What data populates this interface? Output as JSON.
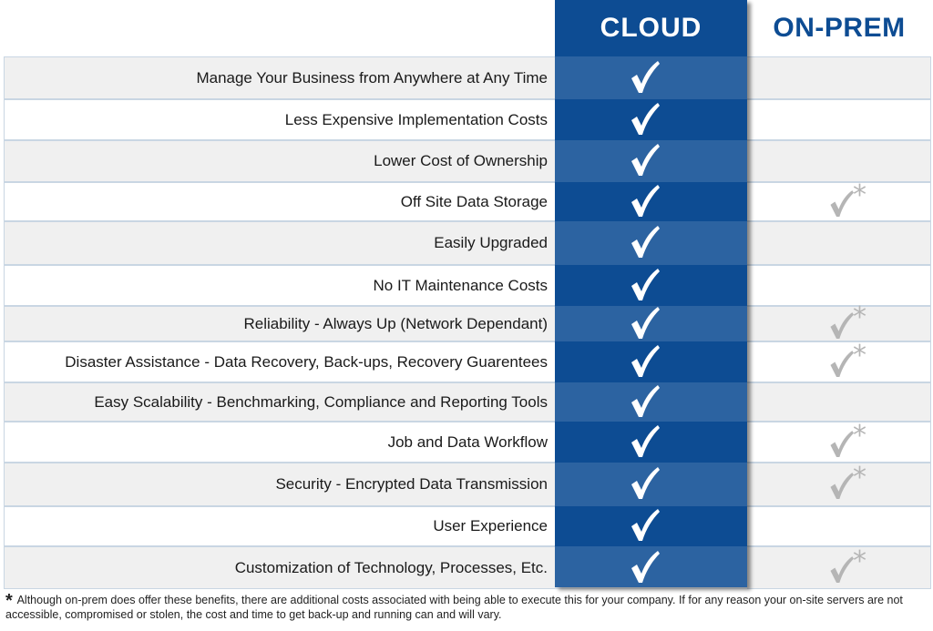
{
  "columns": {
    "cloud": "CLOUD",
    "onprem": "ON-PREM"
  },
  "rows": [
    {
      "label": "Manage Your Business from Anywhere at Any Time",
      "cloud": true,
      "onprem": false
    },
    {
      "label": "Less Expensive Implementation Costs",
      "cloud": true,
      "onprem": false
    },
    {
      "label": "Lower Cost of Ownership",
      "cloud": true,
      "onprem": false
    },
    {
      "label": "Off Site Data Storage",
      "cloud": true,
      "onprem": true
    },
    {
      "label": "Easily Upgraded",
      "cloud": true,
      "onprem": false
    },
    {
      "label": "No IT Maintenance Costs",
      "cloud": true,
      "onprem": false
    },
    {
      "label": "Reliability - Always Up (Network Dependant)",
      "cloud": true,
      "onprem": true
    },
    {
      "label": "Disaster Assistance - Data Recovery, Back-ups, Recovery Guarentees",
      "cloud": true,
      "onprem": true
    },
    {
      "label": "Easy Scalability - Benchmarking, Compliance and Reporting Tools",
      "cloud": true,
      "onprem": false
    },
    {
      "label": "Job and Data Workflow",
      "cloud": true,
      "onprem": true
    },
    {
      "label": "Security - Encrypted Data Transmission",
      "cloud": true,
      "onprem": true
    },
    {
      "label": "User Experience",
      "cloud": true,
      "onprem": false
    },
    {
      "label": "Customization of Technology, Processes, Etc.",
      "cloud": true,
      "onprem": true
    }
  ],
  "onprem_mark": "*",
  "footnote": {
    "symbol": "*",
    "text": "Although on-prem does offer these benefits, there are additional costs associated with being able to execute this for your company. If for any reason your on-site servers are not accessible, compromised or stolen, the cost and time to get back-up and running can and will vary."
  },
  "colors": {
    "cloud_column": "#0d4c93",
    "onprem_heading": "#0d4c93",
    "row_alt": "#f0f0f0",
    "row_border": "#c9d6e3",
    "onprem_check": "#b5b5b5"
  },
  "icons": {
    "cloud_check": "checkmark-icon",
    "onprem_check": "gray-checkmark-icon"
  }
}
